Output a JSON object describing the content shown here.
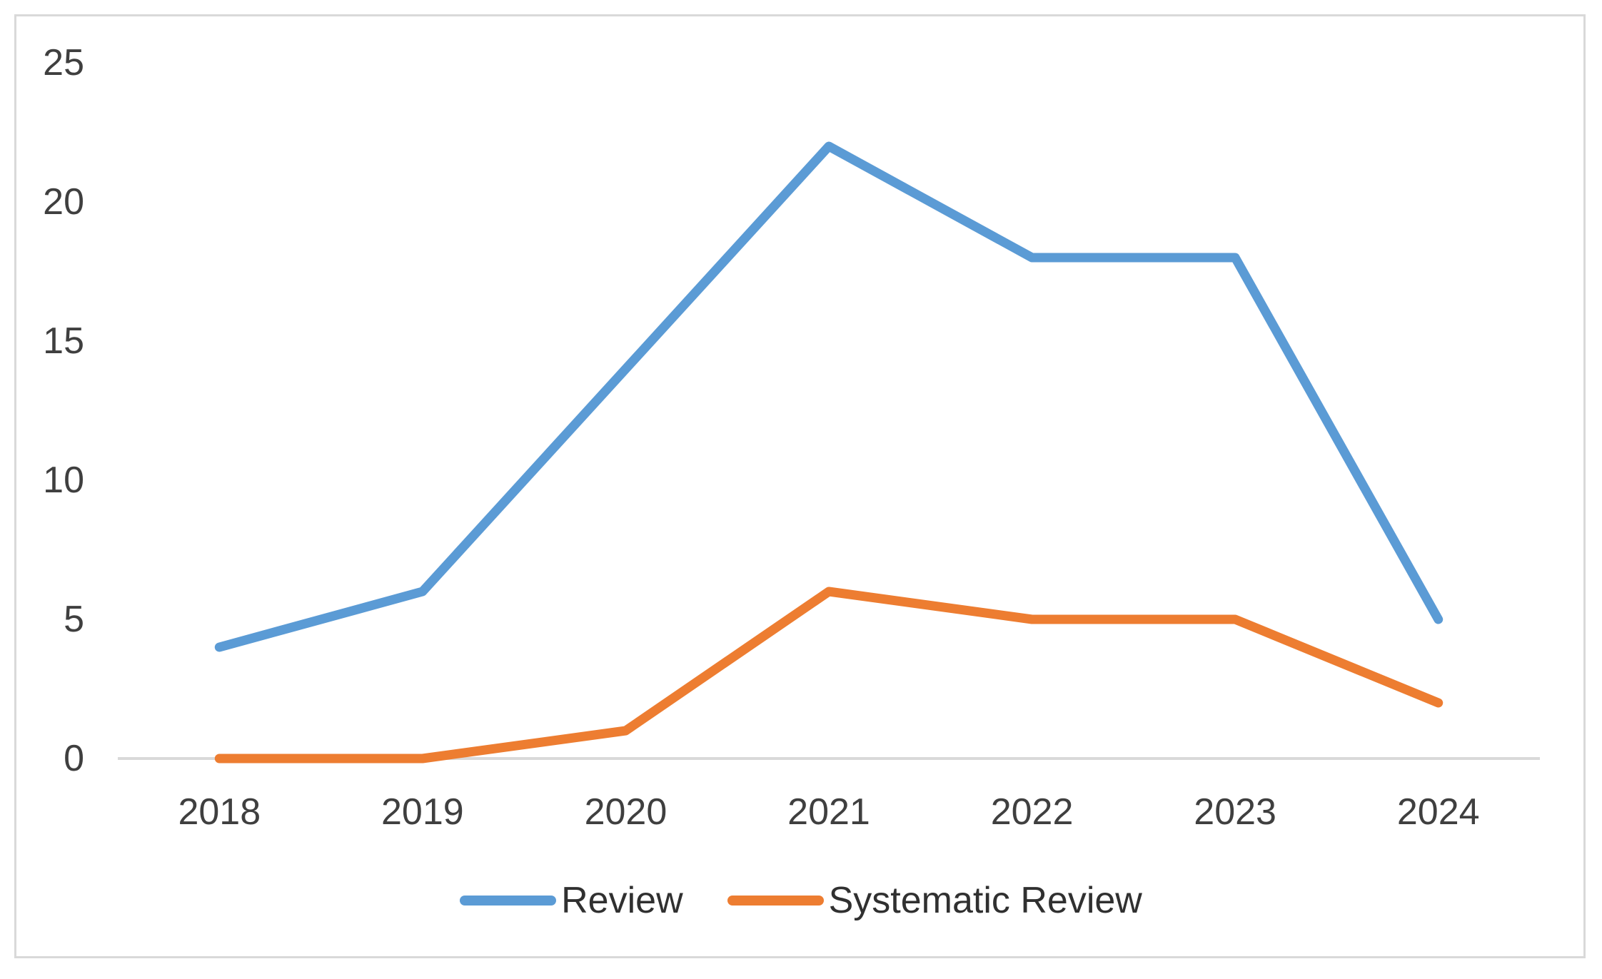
{
  "chart_data": {
    "type": "line",
    "title": "",
    "xlabel": "",
    "ylabel": "",
    "categories": [
      "2018",
      "2019",
      "2020",
      "2021",
      "2022",
      "2023",
      "2024"
    ],
    "series": [
      {
        "name": "Review",
        "color": "#5B9BD5",
        "values": [
          4,
          6,
          14,
          22,
          18,
          18,
          5
        ]
      },
      {
        "name": "Systematic Review",
        "color": "#ED7D31",
        "values": [
          0,
          0,
          1,
          6,
          5,
          5,
          2
        ]
      }
    ],
    "ylim": [
      0,
      25
    ],
    "yticks": [
      0,
      5,
      10,
      15,
      20,
      25
    ],
    "grid": false,
    "legend_position": "bottom",
    "axis_line_color": "#D9D9D9",
    "frame_color": "#D9D9D9",
    "text_color": "#3F3F3F",
    "background_color": "#FFFFFF"
  }
}
